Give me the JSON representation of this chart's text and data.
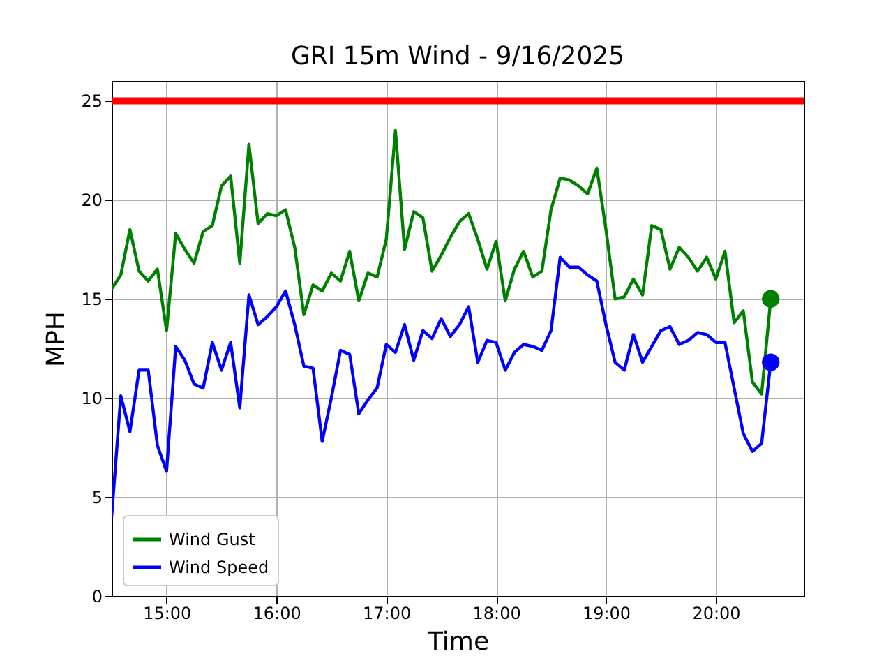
{
  "chart_data": {
    "type": "line",
    "title": "GRI 15m Wind - 9/16/2025",
    "xlabel": "Time",
    "ylabel": "MPH",
    "x": [
      14.5,
      14.5833,
      14.6667,
      14.75,
      14.8333,
      14.9167,
      15,
      15.0833,
      15.1667,
      15.25,
      15.3333,
      15.4167,
      15.5,
      15.5833,
      15.6667,
      15.75,
      15.8333,
      15.9167,
      16,
      16.0833,
      16.1667,
      16.25,
      16.3333,
      16.4167,
      16.5,
      16.5833,
      16.6667,
      16.75,
      16.8333,
      16.9167,
      17,
      17.0833,
      17.1667,
      17.25,
      17.3333,
      17.4167,
      17.5,
      17.5833,
      17.6667,
      17.75,
      17.8333,
      17.9167,
      18,
      18.0833,
      18.1667,
      18.25,
      18.3333,
      18.4167,
      18.5,
      18.5833,
      18.6667,
      18.75,
      18.8333,
      18.9167,
      19,
      19.0833,
      19.1667,
      19.25,
      19.3333,
      19.4167,
      19.5,
      19.5833,
      19.6667,
      19.75,
      19.8333,
      19.9167,
      20,
      20.0833,
      20.1667,
      20.25,
      20.3333,
      20.4167,
      20.5
    ],
    "series": [
      {
        "name": "Wind Gust",
        "color": "#008000",
        "values": [
          15.5,
          16.2,
          18.5,
          16.4,
          15.9,
          16.5,
          13.4,
          18.3,
          17.5,
          16.8,
          18.4,
          18.7,
          20.7,
          21.2,
          16.8,
          22.8,
          18.8,
          19.3,
          19.2,
          19.5,
          17.6,
          14.2,
          15.7,
          15.4,
          16.3,
          15.9,
          17.4,
          14.9,
          16.3,
          16.1,
          18.0,
          23.5,
          17.5,
          19.4,
          19.1,
          16.4,
          17.2,
          18.1,
          18.9,
          19.3,
          18.0,
          16.5,
          17.9,
          14.9,
          16.5,
          17.4,
          16.1,
          16.4,
          19.5,
          21.1,
          21.0,
          20.7,
          20.3,
          21.6,
          18.5,
          15.0,
          15.1,
          16.0,
          15.2,
          18.7,
          18.5,
          16.5,
          17.6,
          17.1,
          16.4,
          17.1,
          16.0,
          17.4,
          13.8,
          14.4,
          10.8,
          10.2,
          15.0
        ]
      },
      {
        "name": "Wind Speed",
        "color": "#0000ff",
        "values": [
          4.0,
          10.1,
          8.3,
          11.4,
          11.4,
          7.6,
          6.3,
          12.6,
          11.9,
          10.7,
          10.5,
          12.8,
          11.4,
          12.8,
          9.5,
          15.2,
          13.7,
          14.1,
          14.6,
          15.4,
          13.7,
          11.6,
          11.5,
          7.8,
          10.0,
          12.4,
          12.2,
          9.2,
          9.9,
          10.5,
          12.7,
          12.3,
          13.7,
          11.9,
          13.4,
          13.0,
          14.0,
          13.1,
          13.7,
          14.6,
          11.8,
          12.9,
          12.8,
          11.4,
          12.3,
          12.7,
          12.6,
          12.4,
          13.4,
          17.1,
          16.6,
          16.6,
          16.2,
          15.9,
          13.7,
          11.8,
          11.4,
          13.2,
          11.8,
          12.6,
          13.4,
          13.6,
          12.7,
          12.9,
          13.3,
          13.2,
          12.8,
          12.8,
          10.5,
          8.2,
          7.3,
          7.7,
          11.8
        ]
      },
      {
        "type": "scatter",
        "marker": "circle",
        "color": "#008000",
        "x": [
          20.5
        ],
        "values": [
          15.0
        ]
      },
      {
        "type": "scatter",
        "marker": "circle",
        "color": "#0000ff",
        "x": [
          20.5
        ],
        "values": [
          11.8
        ]
      }
    ],
    "xlim": [
      14.5,
      20.8
    ],
    "xticks": [
      {
        "value": 15,
        "label": "15:00"
      },
      {
        "value": 16,
        "label": "16:00"
      },
      {
        "value": 17,
        "label": "17:00"
      },
      {
        "value": 18,
        "label": "18:00"
      },
      {
        "value": 19,
        "label": "19:00"
      },
      {
        "value": 20,
        "label": "20:00"
      }
    ],
    "ylim": [
      0,
      26
    ],
    "yticks": [
      0,
      5,
      10,
      15,
      20,
      25
    ],
    "ref_lines": [
      {
        "axis": "y",
        "value": 25,
        "color": "#ff0000"
      }
    ],
    "grid": true,
    "legend": "bottom left",
    "line_style": "solid"
  }
}
